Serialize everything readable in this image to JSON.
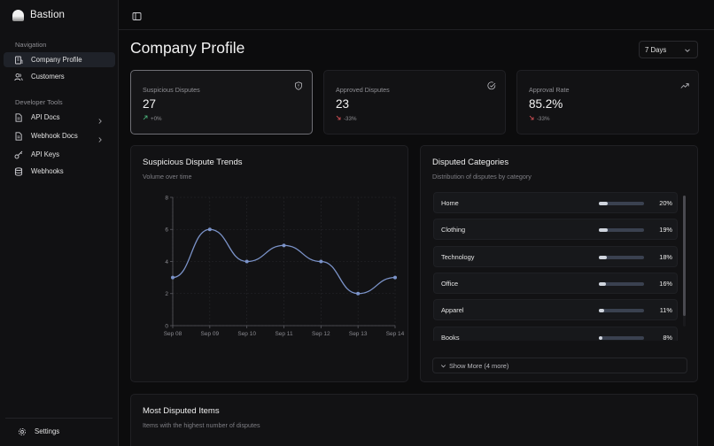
{
  "app": {
    "name": "Bastion"
  },
  "sidebar": {
    "sections": [
      {
        "label": "Navigation"
      },
      {
        "label": "Developer Tools"
      }
    ],
    "nav": [
      {
        "label": "Company Profile",
        "icon": "building-icon",
        "active": true
      },
      {
        "label": "Customers",
        "icon": "users-icon"
      }
    ],
    "dev": [
      {
        "label": "API Docs",
        "icon": "document-icon",
        "expandable": true
      },
      {
        "label": "Webhook Docs",
        "icon": "document-icon",
        "expandable": true
      },
      {
        "label": "API Keys",
        "icon": "key-icon"
      },
      {
        "label": "Webhooks",
        "icon": "database-icon"
      }
    ],
    "footer": {
      "label": "Settings",
      "icon": "gear-icon"
    }
  },
  "page": {
    "title": "Company Profile",
    "range": "7 Days"
  },
  "stats": [
    {
      "title": "Suspicious Disputes",
      "value": "27",
      "delta": "+0%",
      "trend": "up",
      "icon": "shield-icon"
    },
    {
      "title": "Approved Disputes",
      "value": "23",
      "delta": "-33%",
      "trend": "down",
      "icon": "check-circle-icon"
    },
    {
      "title": "Approval Rate",
      "value": "85.2%",
      "delta": "-33%",
      "trend": "down",
      "icon": "trending-up-icon"
    }
  ],
  "trends": {
    "title": "Suspicious Dispute Trends",
    "subtitle": "Volume over time"
  },
  "chart_data": {
    "type": "line",
    "x": [
      "Sep 08",
      "Sep 09",
      "Sep 10",
      "Sep 11",
      "Sep 12",
      "Sep 13",
      "Sep 14"
    ],
    "series": [
      {
        "values": [
          3,
          6,
          4,
          5,
          4,
          2,
          3
        ]
      }
    ],
    "yticks": [
      "0",
      "2",
      "4",
      "6",
      "8"
    ],
    "ylim": [
      0,
      8
    ],
    "grid": true,
    "color": "#7b93c9"
  },
  "categories": {
    "title": "Disputed Categories",
    "subtitle": "Distribution of disputes by category",
    "items": [
      {
        "name": "Home",
        "pct": "20%",
        "value": 0.2
      },
      {
        "name": "Clothing",
        "pct": "19%",
        "value": 0.19
      },
      {
        "name": "Technology",
        "pct": "18%",
        "value": 0.18
      },
      {
        "name": "Office",
        "pct": "16%",
        "value": 0.16
      },
      {
        "name": "Apparel",
        "pct": "11%",
        "value": 0.11
      },
      {
        "name": "Books",
        "pct": "8%",
        "value": 0.08
      }
    ],
    "show_more": "Show More (4 more)"
  },
  "disputed_items": {
    "title": "Most Disputed Items",
    "subtitle": "Items with the highest number of disputes"
  }
}
